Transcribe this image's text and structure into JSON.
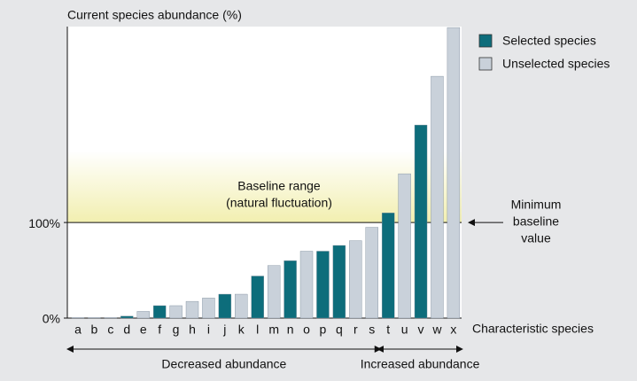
{
  "chart_data": {
    "type": "bar",
    "ylabel": "Current species abundance (%)",
    "xlabel": "Characteristic species",
    "categories": [
      "a",
      "b",
      "c",
      "d",
      "e",
      "f",
      "g",
      "h",
      "i",
      "j",
      "k",
      "l",
      "m",
      "n",
      "o",
      "p",
      "q",
      "r",
      "s",
      "t",
      "u",
      "v",
      "w",
      "x"
    ],
    "series": [
      {
        "name": "Selected species",
        "color": "#0d6d7b",
        "values": [
          null,
          null,
          null,
          2,
          null,
          13,
          null,
          null,
          null,
          25,
          null,
          44,
          null,
          60,
          null,
          70,
          76,
          null,
          null,
          110,
          null,
          202,
          null,
          null
        ]
      },
      {
        "name": "Unselected species",
        "color": "#c9d1da",
        "values": [
          0.5,
          0.5,
          0.5,
          null,
          7,
          null,
          13,
          17.5,
          21,
          null,
          25,
          null,
          55,
          null,
          70,
          null,
          null,
          81,
          95,
          null,
          151,
          null,
          253,
          304
        ]
      }
    ],
    "ylim": [
      0,
      305
    ],
    "yticks": [
      {
        "value": 0,
        "label": "0%"
      },
      {
        "value": 100,
        "label": "100%"
      }
    ],
    "baseline_band": [
      100,
      175
    ],
    "baseline_label": [
      "Baseline range",
      "(natural fluctuation)"
    ],
    "minimum_label": [
      "Minimum",
      "baseline",
      "value"
    ],
    "groups": [
      {
        "label": "Decreased abundance",
        "from": "a",
        "to": "s"
      },
      {
        "label": "Increased abundance",
        "from": "t",
        "to": "x"
      }
    ]
  }
}
